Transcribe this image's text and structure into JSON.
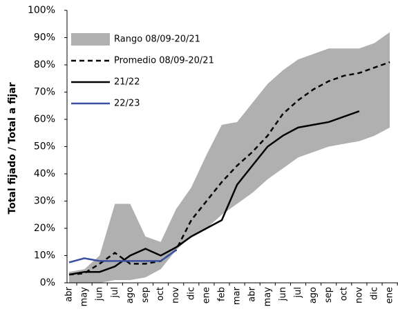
{
  "chart_data": {
    "type": "line",
    "y_label": "Total fijado / Total a fijar",
    "categories": [
      "abr",
      "may",
      "jun",
      "jul",
      "ago",
      "sep",
      "oct",
      "nov",
      "dic",
      "ene",
      "feb",
      "mar",
      "abr",
      "may",
      "jun",
      "jul",
      "ago",
      "sep",
      "oct",
      "nov",
      "dic",
      "ene"
    ],
    "series": [
      {
        "name": "Rango 08/09-20/21",
        "type": "band",
        "color": "#b0b0b0",
        "high": [
          4,
          5,
          10,
          29,
          29,
          17,
          15,
          27,
          35,
          47,
          58,
          59,
          66,
          73,
          78,
          82,
          84,
          86,
          86,
          86,
          88,
          92
        ],
        "low": [
          0,
          0,
          0,
          1,
          1,
          2,
          5,
          12,
          17,
          20,
          25,
          29,
          33,
          38,
          42,
          46,
          48,
          50,
          51,
          52,
          54,
          57
        ]
      },
      {
        "name": "Promedio 08/09-20/21",
        "color": "#000000",
        "dashed": true,
        "values": [
          3,
          3.5,
          7,
          11,
          7,
          7,
          8,
          12,
          23,
          30,
          37,
          43,
          48,
          54,
          62,
          67,
          71,
          74,
          76,
          77,
          79,
          81
        ]
      },
      {
        "name": "21/22",
        "color": "#000000",
        "values": [
          3,
          4,
          4,
          6,
          10,
          12.5,
          10,
          13,
          17,
          20,
          23,
          36,
          43,
          50,
          54,
          57,
          58,
          59,
          61,
          63,
          null,
          null
        ]
      },
      {
        "name": "22/23",
        "color": "#3a4fa0",
        "values": [
          7.5,
          9,
          8,
          8,
          8,
          8,
          8,
          12,
          null,
          null,
          null,
          null,
          null,
          null,
          null,
          null,
          null,
          null,
          null,
          null,
          null,
          null
        ]
      }
    ],
    "ylim": [
      0,
      100
    ],
    "yticks": [
      {
        "value": 0,
        "label": "0%"
      },
      {
        "value": 10,
        "label": "10%"
      },
      {
        "value": 20,
        "label": "20%"
      },
      {
        "value": 30,
        "label": "30%"
      },
      {
        "value": 40,
        "label": "40%"
      },
      {
        "value": 50,
        "label": "50%"
      },
      {
        "value": 60,
        "label": "60%"
      },
      {
        "value": 70,
        "label": "70%"
      },
      {
        "value": 80,
        "label": "80%"
      },
      {
        "value": 90,
        "label": "90%"
      },
      {
        "value": 100,
        "label": "100%"
      }
    ],
    "legend": "upper left"
  }
}
